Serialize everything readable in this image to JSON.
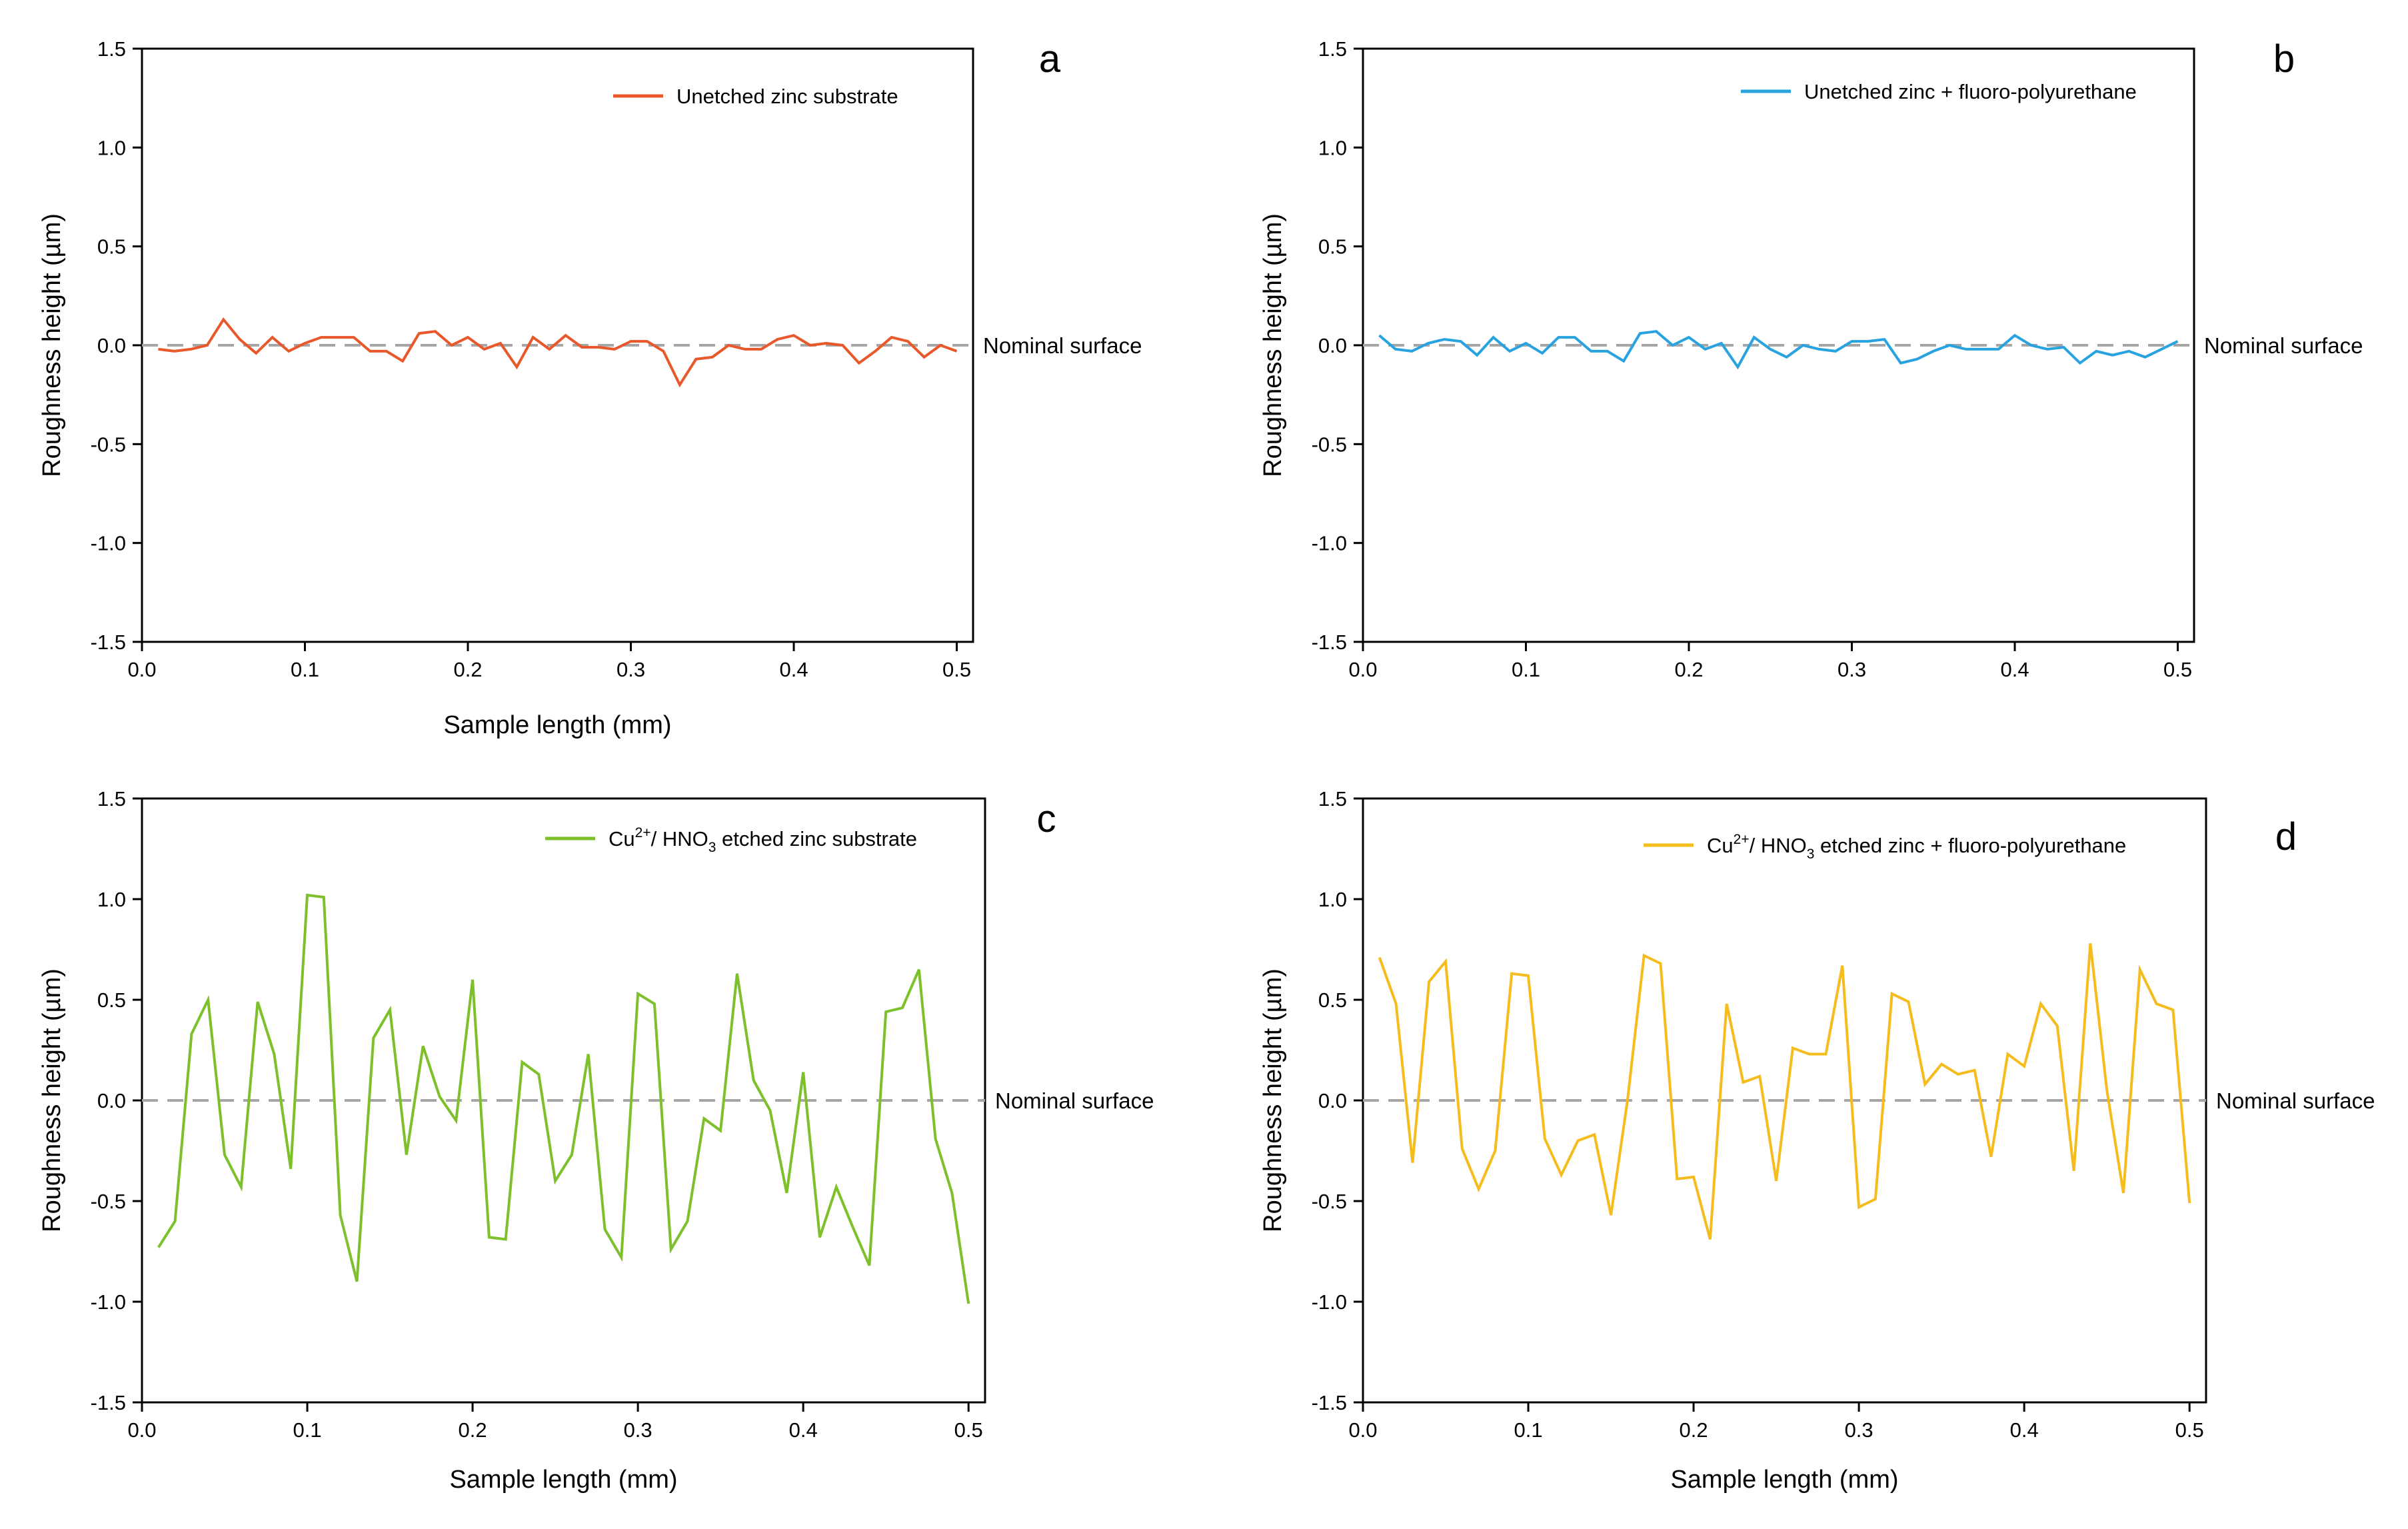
{
  "chart_data": [
    {
      "type": "line",
      "panel_label": "a",
      "xlabel": "Sample length (mm)",
      "ylabel": "Roughness height (µm)",
      "xlim": [
        0,
        0.51
      ],
      "ylim": [
        -1.5,
        1.5
      ],
      "x_ticks": [
        "0.0",
        "0.1",
        "0.2",
        "0.3",
        "0.4",
        "0.5"
      ],
      "y_ticks": [
        "1.5",
        "1.0",
        "0.5",
        "0.0",
        "-0.5",
        "-1.0",
        "-1.5"
      ],
      "reference_label": "Nominal surface",
      "series": [
        {
          "name": "Unetched zinc substrate",
          "name_sup": "",
          "name_mid": "",
          "name_sub": "",
          "name_post": "",
          "color": "#E8582A",
          "x_start": 0.01,
          "x_step": 0.01,
          "values": [
            -0.02,
            -0.03,
            -0.02,
            0.0,
            0.13,
            0.03,
            -0.04,
            0.04,
            -0.03,
            0.01,
            0.04,
            0.04,
            0.04,
            -0.03,
            -0.03,
            -0.08,
            0.06,
            0.07,
            0.0,
            0.04,
            -0.02,
            0.01,
            -0.11,
            0.04,
            -0.02,
            0.05,
            -0.01,
            -0.01,
            -0.02,
            0.02,
            0.02,
            -0.03,
            -0.2,
            -0.07,
            -0.06,
            0.0,
            -0.02,
            -0.02,
            0.03,
            0.05,
            0.0,
            0.01,
            0.0,
            -0.09,
            -0.03,
            0.04,
            0.02,
            -0.06,
            0.0,
            -0.03
          ]
        }
      ]
    },
    {
      "type": "line",
      "panel_label": "b",
      "xlabel": "",
      "ylabel": "Roughness height (µm)",
      "xlim": [
        0,
        0.51
      ],
      "ylim": [
        -1.5,
        1.5
      ],
      "x_ticks": [
        "0.0",
        "0.1",
        "0.2",
        "0.3",
        "0.4",
        "0.5"
      ],
      "y_ticks": [
        "1.5",
        "1.0",
        "0.5",
        "0.0",
        "-0.5",
        "-1.0",
        "-1.5"
      ],
      "reference_label": "Nominal surface",
      "series": [
        {
          "name": "Unetched zinc + fluoro-polyurethane",
          "name_sup": "",
          "name_mid": "",
          "name_sub": "",
          "name_post": "",
          "color": "#29A3E0",
          "x_start": 0.01,
          "x_step": 0.01,
          "values": [
            0.05,
            -0.02,
            -0.03,
            0.01,
            0.03,
            0.02,
            -0.05,
            0.04,
            -0.03,
            0.01,
            -0.04,
            0.04,
            0.04,
            -0.03,
            -0.03,
            -0.08,
            0.06,
            0.07,
            0.0,
            0.04,
            -0.02,
            0.01,
            -0.11,
            0.04,
            -0.02,
            -0.06,
            0.0,
            -0.02,
            -0.03,
            0.02,
            0.02,
            0.03,
            -0.09,
            -0.07,
            -0.03,
            0.0,
            -0.02,
            -0.02,
            -0.02,
            0.05,
            0.0,
            -0.02,
            -0.01,
            -0.09,
            -0.03,
            -0.05,
            -0.03,
            -0.06,
            -0.02,
            0.02
          ]
        }
      ]
    },
    {
      "type": "line",
      "panel_label": "c",
      "xlabel": "Sample length (mm)",
      "ylabel": "Roughness height (µm)",
      "xlim": [
        0,
        0.51
      ],
      "ylim": [
        -1.5,
        1.5
      ],
      "x_ticks": [
        "0.0",
        "0.1",
        "0.2",
        "0.3",
        "0.4",
        "0.5"
      ],
      "y_ticks": [
        "1.5",
        "1.0",
        "0.5",
        "0.0",
        "-0.5",
        "-1.0",
        "-1.5"
      ],
      "reference_label": "Nominal surface",
      "series": [
        {
          "name": "Cu²⁺/ HNO₃ etched zinc substrate",
          "name_pre": "Cu",
          "name_sup": "2+",
          "name_mid": "/ HNO",
          "name_sub": "3",
          "name_post": " etched zinc substrate",
          "color": "#7DC02A",
          "x_start": 0.01,
          "x_step": 0.01,
          "values": [
            -0.73,
            -0.6,
            0.33,
            0.5,
            -0.27,
            -0.43,
            0.49,
            0.23,
            -0.34,
            1.02,
            1.01,
            -0.57,
            -0.9,
            0.31,
            0.45,
            -0.27,
            0.27,
            0.02,
            -0.1,
            0.6,
            -0.68,
            -0.69,
            0.19,
            0.13,
            -0.4,
            -0.27,
            0.23,
            -0.64,
            -0.78,
            0.53,
            0.48,
            -0.74,
            -0.6,
            -0.09,
            -0.15,
            0.63,
            0.1,
            -0.05,
            -0.46,
            0.14,
            -0.68,
            -0.43,
            -0.63,
            -0.82,
            0.44,
            0.46,
            0.65,
            -0.19,
            -0.46,
            -1.01
          ]
        }
      ]
    },
    {
      "type": "line",
      "panel_label": "d",
      "xlabel": "Sample length (mm)",
      "ylabel": "Roughness height (µm)",
      "xlim": [
        0,
        0.51
      ],
      "ylim": [
        -1.5,
        1.5
      ],
      "x_ticks": [
        "0.0",
        "0.1",
        "0.2",
        "0.3",
        "0.4",
        "0.5"
      ],
      "y_ticks": [
        "1.5",
        "1.0",
        "0.5",
        "0.0",
        "-0.5",
        "-1.0",
        "-1.5"
      ],
      "reference_label": "Nominal surface",
      "series": [
        {
          "name": "Cu²⁺/ HNO₃ etched zinc + fluoro-polyurethane",
          "name_pre": "Cu",
          "name_sup": "2+",
          "name_mid": "/ HNO",
          "name_sub": "3",
          "name_post": " etched zinc + fluoro-polyurethane",
          "color": "#F5BC1E",
          "x_start": 0.01,
          "x_step": 0.01,
          "values": [
            0.71,
            0.48,
            -0.31,
            0.59,
            0.69,
            -0.24,
            -0.44,
            -0.25,
            0.63,
            0.62,
            -0.19,
            -0.37,
            -0.2,
            -0.17,
            -0.57,
            0.0,
            0.72,
            0.68,
            -0.39,
            -0.38,
            -0.69,
            0.48,
            0.09,
            0.12,
            -0.4,
            0.26,
            0.23,
            0.23,
            0.67,
            -0.53,
            -0.49,
            0.53,
            0.49,
            0.08,
            0.18,
            0.13,
            0.15,
            -0.28,
            0.23,
            0.17,
            0.48,
            0.37,
            -0.35,
            0.78,
            0.05,
            -0.46,
            0.65,
            0.48,
            0.45,
            -0.51
          ]
        }
      ]
    }
  ]
}
